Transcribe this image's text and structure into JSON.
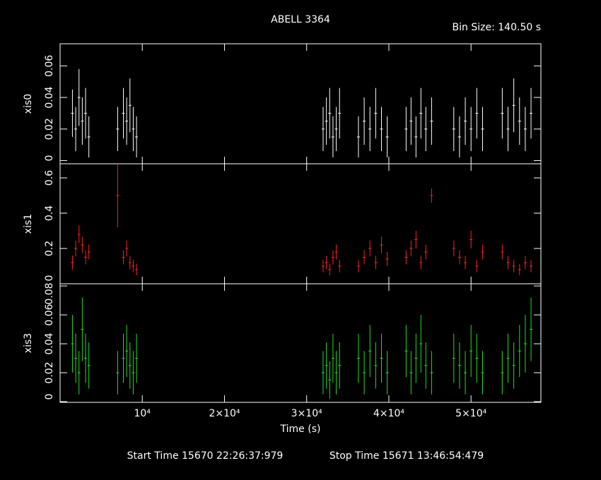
{
  "title": "ABELL 3364",
  "bin_size": "Bin Size: 140.50 s",
  "x_label": "Time (s)",
  "start_time": "Start Time 15670 22:26:37:979",
  "stop_time": "Stop Time 15671 13:46:54:479",
  "chart_data": [
    {
      "type": "errorbar",
      "y_label": "xis0",
      "color": "#ffffff",
      "xlim": [
        0,
        58500
      ],
      "ylim": [
        -0.002,
        0.074
      ],
      "xticks": [
        {
          "value": 10000,
          "label": "10⁴"
        },
        {
          "value": 20000,
          "label": "2×10⁴"
        },
        {
          "value": 30000,
          "label": "3×10⁴"
        },
        {
          "value": 40000,
          "label": "4×10⁴"
        },
        {
          "value": 50000,
          "label": "5×10⁴"
        }
      ],
      "yticks": [
        0,
        0.02,
        0.04,
        0.06
      ],
      "x": [
        1500,
        1900,
        2300,
        2700,
        3100,
        3500,
        7000,
        7700,
        8100,
        8500,
        8900,
        9300,
        32000,
        32400,
        32800,
        33200,
        33600,
        34000,
        36300,
        37000,
        37700,
        38400,
        39100,
        39800,
        42100,
        42700,
        43300,
        43900,
        44500,
        45200,
        47900,
        48600,
        49300,
        50000,
        50700,
        51400,
        53800,
        54500,
        55200,
        55900,
        56600,
        57300
      ],
      "values": [
        0.03,
        0.02,
        0.04,
        0.025,
        0.03,
        0.015,
        0.02,
        0.03,
        0.025,
        0.035,
        0.02,
        0.015,
        0.02,
        0.025,
        0.03,
        0.015,
        0.02,
        0.03,
        0.015,
        0.025,
        0.02,
        0.03,
        0.02,
        0.015,
        0.02,
        0.025,
        0.015,
        0.03,
        0.02,
        0.025,
        0.02,
        0.015,
        0.025,
        0.02,
        0.03,
        0.02,
        0.03,
        0.02,
        0.035,
        0.025,
        0.02,
        0.03
      ],
      "errors": [
        0.015,
        0.014,
        0.018,
        0.015,
        0.016,
        0.013,
        0.014,
        0.016,
        0.015,
        0.017,
        0.014,
        0.013,
        0.014,
        0.015,
        0.016,
        0.013,
        0.014,
        0.016,
        0.013,
        0.015,
        0.014,
        0.016,
        0.014,
        0.013,
        0.014,
        0.015,
        0.013,
        0.016,
        0.014,
        0.015,
        0.014,
        0.013,
        0.015,
        0.014,
        0.016,
        0.014,
        0.016,
        0.014,
        0.017,
        0.015,
        0.014,
        0.016
      ]
    },
    {
      "type": "errorbar",
      "y_label": "xis1",
      "color": "#ff2020",
      "xlim": [
        0,
        58500
      ],
      "ylim": [
        0,
        0.68
      ],
      "xticks": [
        {
          "value": 10000,
          "label": "10⁴"
        },
        {
          "value": 20000,
          "label": "2×10⁴"
        },
        {
          "value": 30000,
          "label": "3×10⁴"
        },
        {
          "value": 40000,
          "label": "4×10⁴"
        },
        {
          "value": 50000,
          "label": "5×10⁴"
        }
      ],
      "yticks": [
        0,
        0.2,
        0.4,
        0.6
      ],
      "x": [
        1500,
        1900,
        2300,
        2700,
        3100,
        3500,
        7000,
        7700,
        8100,
        8500,
        8900,
        9300,
        32000,
        32400,
        32800,
        33200,
        33600,
        34000,
        36300,
        37000,
        37700,
        38400,
        39100,
        39800,
        42100,
        42700,
        43300,
        43900,
        44500,
        45200,
        47900,
        48600,
        49300,
        50000,
        50700,
        51400,
        53800,
        54500,
        55200,
        55900,
        56600,
        57300
      ],
      "values": [
        0.12,
        0.2,
        0.28,
        0.22,
        0.15,
        0.18,
        0.5,
        0.15,
        0.2,
        0.12,
        0.1,
        0.08,
        0.1,
        0.12,
        0.08,
        0.15,
        0.18,
        0.1,
        0.1,
        0.15,
        0.2,
        0.12,
        0.22,
        0.14,
        0.15,
        0.2,
        0.25,
        0.12,
        0.18,
        0.5,
        0.2,
        0.15,
        0.12,
        0.25,
        0.1,
        0.18,
        0.18,
        0.12,
        0.1,
        0.08,
        0.12,
        0.1
      ],
      "errors": [
        0.04,
        0.045,
        0.05,
        0.045,
        0.04,
        0.042,
        0.18,
        0.04,
        0.045,
        0.038,
        0.035,
        0.032,
        0.035,
        0.038,
        0.032,
        0.04,
        0.042,
        0.035,
        0.035,
        0.04,
        0.045,
        0.038,
        0.047,
        0.04,
        0.04,
        0.045,
        0.05,
        0.038,
        0.042,
        0.04,
        0.045,
        0.04,
        0.038,
        0.05,
        0.035,
        0.042,
        0.042,
        0.038,
        0.035,
        0.032,
        0.038,
        0.035
      ]
    },
    {
      "type": "errorbar",
      "y_label": "xis3",
      "color": "#20e020",
      "xlim": [
        0,
        58500
      ],
      "ylim": [
        -0.0005,
        0.0815
      ],
      "xticks": [
        {
          "value": 10000,
          "label": "10⁴"
        },
        {
          "value": 20000,
          "label": "2×10⁴"
        },
        {
          "value": 30000,
          "label": "3×10⁴"
        },
        {
          "value": 40000,
          "label": "4×10⁴"
        },
        {
          "value": 50000,
          "label": "5×10⁴"
        }
      ],
      "yticks": [
        0,
        0.02,
        0.04,
        0.06,
        0.08
      ],
      "x": [
        1500,
        1900,
        2300,
        2700,
        3100,
        3500,
        7000,
        7700,
        8100,
        8500,
        8900,
        9300,
        32000,
        32400,
        32800,
        33200,
        33600,
        34000,
        36300,
        37000,
        37700,
        38400,
        39100,
        39800,
        42100,
        42700,
        43300,
        43900,
        44500,
        45200,
        47900,
        48600,
        49300,
        50000,
        50700,
        51400,
        53800,
        54500,
        55200,
        55900,
        56600,
        57300
      ],
      "values": [
        0.04,
        0.03,
        0.02,
        0.05,
        0.03,
        0.025,
        0.02,
        0.03,
        0.035,
        0.025,
        0.02,
        0.03,
        0.02,
        0.025,
        0.015,
        0.03,
        0.02,
        0.025,
        0.03,
        0.02,
        0.035,
        0.025,
        0.03,
        0.02,
        0.035,
        0.02,
        0.03,
        0.04,
        0.025,
        0.02,
        0.03,
        0.025,
        0.02,
        0.035,
        0.03,
        0.02,
        0.02,
        0.03,
        0.025,
        0.035,
        0.04,
        0.05
      ],
      "errors": [
        0.02,
        0.017,
        0.015,
        0.022,
        0.017,
        0.016,
        0.015,
        0.017,
        0.018,
        0.016,
        0.015,
        0.017,
        0.015,
        0.016,
        0.013,
        0.017,
        0.015,
        0.016,
        0.017,
        0.015,
        0.018,
        0.016,
        0.017,
        0.015,
        0.018,
        0.015,
        0.017,
        0.02,
        0.016,
        0.015,
        0.017,
        0.016,
        0.015,
        0.018,
        0.017,
        0.015,
        0.015,
        0.017,
        0.016,
        0.018,
        0.02,
        0.022
      ]
    }
  ]
}
